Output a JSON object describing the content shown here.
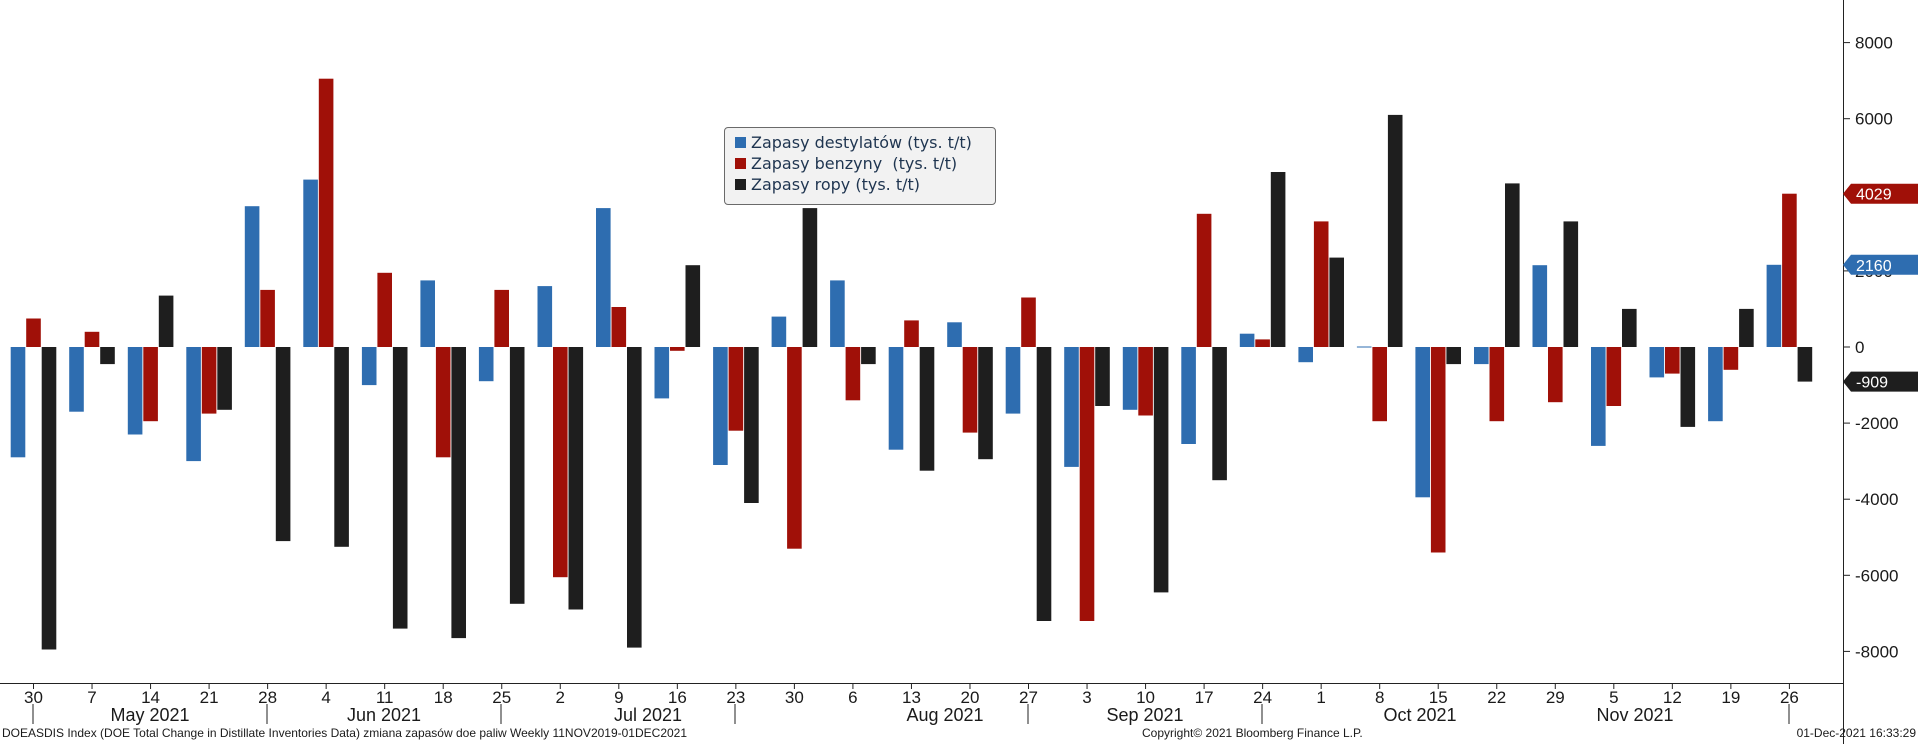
{
  "chart_data": {
    "type": "bar",
    "x": [
      "30",
      "7",
      "14",
      "21",
      "28",
      "4",
      "11",
      "18",
      "25",
      "2",
      "9",
      "16",
      "23",
      "30",
      "6",
      "13",
      "20",
      "27",
      "3",
      "10",
      "17",
      "24",
      "1",
      "8",
      "15",
      "22",
      "29",
      "5",
      "12",
      "19",
      "26"
    ],
    "months": [
      "May 2021",
      "Jun 2021",
      "Jul 2021",
      "Aug 2021",
      "Sep 2021",
      "Oct 2021",
      "Nov 2021"
    ],
    "series": [
      {
        "name": "Zapasy destylatów (tys. t/t)",
        "color": "#2e6db0",
        "values": [
          -2900,
          -1700,
          -2300,
          -3000,
          3700,
          4400,
          -1000,
          1750,
          -900,
          1600,
          3650,
          -1350,
          -3100,
          800,
          1750,
          -2700,
          650,
          -1750,
          -3150,
          -1650,
          -2550,
          350,
          -400,
          0,
          -3950,
          -450,
          2150,
          -2600,
          -800,
          -1950,
          2160
        ]
      },
      {
        "name": "Zapasy benzyny  (tys. t/t)",
        "color": "#a01008",
        "values": [
          750,
          400,
          -1950,
          -1750,
          1500,
          7050,
          1950,
          -2900,
          1500,
          -6050,
          1050,
          -100,
          -2200,
          -5300,
          -1400,
          700,
          -2250,
          1300,
          -7200,
          -1800,
          3500,
          200,
          3300,
          -1950,
          -5400,
          -1950,
          -1450,
          -1550,
          -700,
          -600,
          4029
        ]
      },
      {
        "name": "Zapasy ropy (tys. t/t)",
        "color": "#1e1e1e",
        "values": [
          -7950,
          -450,
          1350,
          -1650,
          -5100,
          -5250,
          -7400,
          -7650,
          -6750,
          -6900,
          -7900,
          2150,
          -4100,
          3650,
          -450,
          -3250,
          -2950,
          -7200,
          -1550,
          -6450,
          -3500,
          4600,
          2350,
          6100,
          -450,
          4300,
          3300,
          1000,
          -2100,
          1000,
          -909
        ]
      }
    ],
    "y_ticks": [
      8000,
      6000,
      4000,
      2000,
      0,
      -2000,
      -4000,
      -6000,
      -8000
    ],
    "ylim": [
      -8850,
      9100
    ],
    "last_values": [
      "4029",
      "2160",
      "-909"
    ]
  },
  "footer": {
    "left": "DOEASDIS Index (DOE Total Change in Distillate Inventories Data) zmiana zapasów doe paliw  Weekly 11NOV2019-01DEC2021",
    "center": "Copyright© 2021 Bloomberg Finance L.P.",
    "right": "01-Dec-2021 16:33:29"
  }
}
